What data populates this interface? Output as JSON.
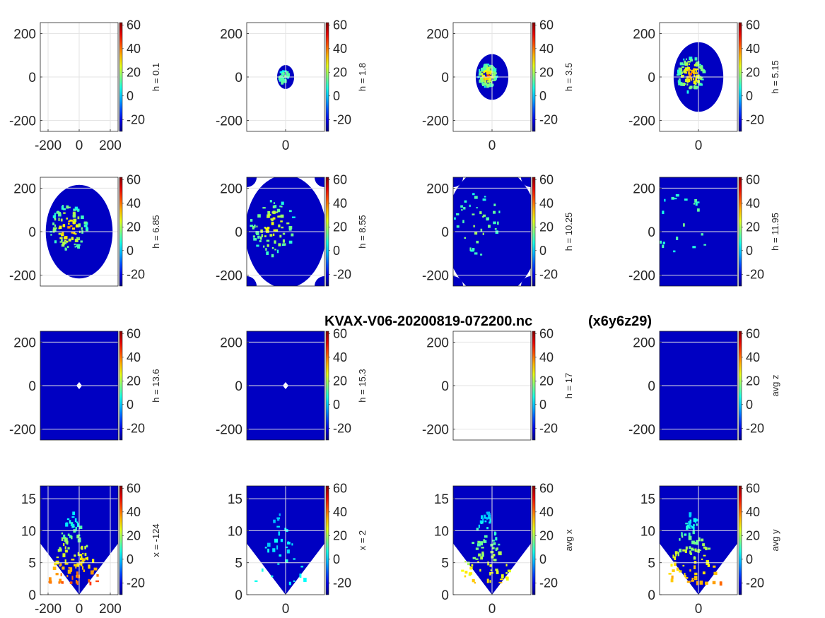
{
  "figure_title": "KVAX-V06-20200819-072200.nc",
  "figure_tag": "(x6y6z29)",
  "colormap": {
    "name": "jet",
    "range": [
      -30,
      62
    ],
    "ticks": [
      "-20",
      "0",
      "20",
      "40",
      "60"
    ]
  },
  "chart_data": [
    {
      "type": "heatmap",
      "cblabel": "h = 0.1",
      "xticks": [
        "-200",
        "0",
        "200"
      ],
      "yticks": [
        "-200",
        "0",
        "200"
      ],
      "xlim": [
        -250,
        250
      ],
      "ylim": [
        -250,
        250
      ],
      "view": "plan",
      "coverage": "none",
      "convective": 0
    },
    {
      "type": "heatmap",
      "cblabel": "h = 1.8",
      "xticks": [
        "0"
      ],
      "yticks": [
        "-200",
        "0",
        "200"
      ],
      "xlim": [
        -250,
        250
      ],
      "ylim": [
        -250,
        250
      ],
      "view": "plan",
      "coverage": "ellipse",
      "radius": 55,
      "convective": 0.2
    },
    {
      "type": "heatmap",
      "cblabel": "h = 3.5",
      "xticks": [
        "0"
      ],
      "yticks": [
        "-200",
        "0",
        "200"
      ],
      "xlim": [
        -250,
        250
      ],
      "ylim": [
        -250,
        250
      ],
      "view": "plan",
      "coverage": "ellipse",
      "radius": 105,
      "convective": 0.85
    },
    {
      "type": "heatmap",
      "cblabel": "h = 5.15",
      "xticks": [
        "0"
      ],
      "yticks": [
        "-200",
        "0",
        "200"
      ],
      "xlim": [
        -250,
        250
      ],
      "ylim": [
        -250,
        250
      ],
      "view": "plan",
      "coverage": "ellipse",
      "radius": 160,
      "convective": 0.8
    },
    {
      "type": "heatmap",
      "cblabel": "h = 6.85",
      "xticks": [],
      "yticks": [
        "-200",
        "0",
        "200"
      ],
      "xlim": [
        -250,
        250
      ],
      "ylim": [
        -250,
        250
      ],
      "view": "plan",
      "coverage": "ellipse",
      "radius": 215,
      "convective": 0.75
    },
    {
      "type": "heatmap",
      "cblabel": "h = 8.55",
      "xticks": [],
      "yticks": [
        "-200",
        "0",
        "200"
      ],
      "xlim": [
        -250,
        250
      ],
      "ylim": [
        -250,
        250
      ],
      "view": "plan",
      "coverage": "clipped",
      "radius": 260,
      "convective": 0.55
    },
    {
      "type": "heatmap",
      "cblabel": "h = 10.25",
      "xticks": [],
      "yticks": [
        "-200",
        "0",
        "200"
      ],
      "xlim": [
        -250,
        250
      ],
      "ylim": [
        -250,
        250
      ],
      "view": "plan",
      "coverage": "clipped",
      "radius": 300,
      "convective": 0.25
    },
    {
      "type": "heatmap",
      "cblabel": "h = 11.95",
      "xticks": [],
      "yticks": [
        "-200",
        "0",
        "200"
      ],
      "xlim": [
        -250,
        250
      ],
      "ylim": [
        -250,
        250
      ],
      "view": "plan",
      "coverage": "clipped",
      "radius": 320,
      "convective": 0.08
    },
    {
      "type": "heatmap",
      "cblabel": "h = 13.6",
      "xticks": [],
      "yticks": [
        "-200",
        "0",
        "200"
      ],
      "xlim": [
        -250,
        250
      ],
      "ylim": [
        -250,
        250
      ],
      "view": "plan",
      "coverage": "clipped",
      "radius": 330,
      "convective": 0
    },
    {
      "type": "heatmap",
      "cblabel": "h = 15.3",
      "xticks": [],
      "yticks": [
        "-200",
        "0",
        "200"
      ],
      "xlim": [
        -250,
        250
      ],
      "ylim": [
        -250,
        250
      ],
      "view": "plan",
      "coverage": "clipped",
      "radius": 335,
      "convective": 0
    },
    {
      "type": "heatmap",
      "cblabel": "h = 17",
      "xticks": [],
      "yticks": [
        "-200",
        "0",
        "200"
      ],
      "xlim": [
        -250,
        250
      ],
      "ylim": [
        -250,
        250
      ],
      "view": "plan",
      "coverage": "none",
      "convective": 0
    },
    {
      "type": "heatmap",
      "cblabel": "avg z",
      "xticks": [],
      "yticks": [
        "-200",
        "0",
        "200"
      ],
      "xlim": [
        -250,
        250
      ],
      "ylim": [
        -250,
        250
      ],
      "view": "plan",
      "coverage": "full",
      "convective": 0.7
    },
    {
      "type": "heatmap",
      "cblabel": "x = -124",
      "xticks": [
        "-200",
        "0",
        "200"
      ],
      "yticks": [
        "0",
        "5",
        "10",
        "15"
      ],
      "xlim": [
        -250,
        250
      ],
      "ylim": [
        0,
        17
      ],
      "view": "section",
      "convective": 0.8
    },
    {
      "type": "heatmap",
      "cblabel": "x = 2",
      "xticks": [
        "0"
      ],
      "yticks": [
        "0",
        "5",
        "10",
        "15"
      ],
      "xlim": [
        -250,
        250
      ],
      "ylim": [
        0,
        17
      ],
      "view": "section",
      "convective": 0.15
    },
    {
      "type": "heatmap",
      "cblabel": "avg x",
      "xticks": [
        "0"
      ],
      "yticks": [
        "0",
        "5",
        "10",
        "15"
      ],
      "xlim": [
        -250,
        250
      ],
      "ylim": [
        0,
        17
      ],
      "view": "section",
      "convective": 0.6
    },
    {
      "type": "heatmap",
      "cblabel": "avg y",
      "xticks": [
        "0"
      ],
      "yticks": [
        "0",
        "5",
        "10",
        "15"
      ],
      "xlim": [
        -250,
        250
      ],
      "ylim": [
        0,
        17
      ],
      "view": "section",
      "convective": 0.7
    }
  ]
}
